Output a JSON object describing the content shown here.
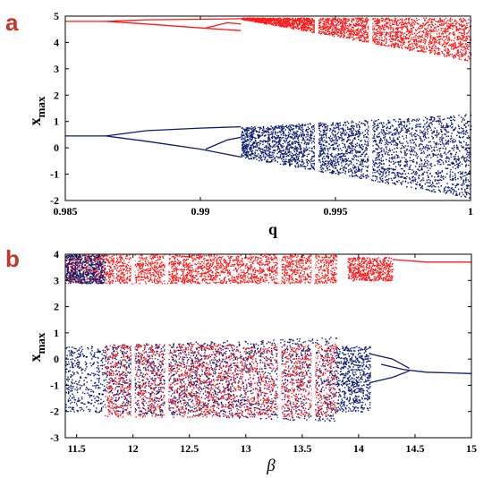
{
  "panels": [
    {
      "letter": "a"
    },
    {
      "letter": "b"
    }
  ],
  "colors": {
    "red": "#ff1a1a",
    "blue": "#0a1a70"
  },
  "chart_data": [
    {
      "type": "scatter",
      "panel": "a",
      "title": "",
      "xlabel": "q",
      "ylabel_main": "x",
      "ylabel_sub": "max",
      "xlim": [
        0.985,
        1.0
      ],
      "ylim": [
        -2,
        5
      ],
      "xticks": [
        0.985,
        0.99,
        0.995,
        1.0
      ],
      "xtick_labels": [
        "0.985",
        "0.99",
        "0.995",
        "1"
      ],
      "yticks": [
        -2,
        -1,
        0,
        1,
        2,
        3,
        4,
        5
      ],
      "yticks_labels": [
        "-2",
        "-1",
        "0",
        "1",
        "2",
        "3",
        "4",
        "5"
      ],
      "grid": false,
      "legend": "none",
      "series": [
        {
          "color": "red",
          "branch": "upper",
          "bifurcations_q": [
            0.9865,
            0.9902,
            0.9915
          ],
          "fixed_value": 4.8,
          "chaos_range_end": [
            3.3,
            4.9
          ]
        },
        {
          "color": "blue",
          "branch": "lower",
          "bifurcations_q": [
            0.9865,
            0.9902,
            0.9915
          ],
          "fixed_value": 0.45,
          "chaos_range_end": [
            -1.9,
            1.3
          ]
        }
      ]
    },
    {
      "type": "scatter",
      "panel": "b",
      "title": "",
      "xlabel": "β",
      "ylabel_main": "x",
      "ylabel_sub": "max",
      "xlim": [
        11.4,
        15.0
      ],
      "ylim": [
        -3,
        4
      ],
      "xticks": [
        11.5,
        12,
        12.5,
        13,
        13.5,
        14,
        14.5,
        15
      ],
      "xtick_labels": [
        "11.5",
        "12",
        "12.5",
        "13",
        "13.5",
        "14",
        "14.5",
        "15"
      ],
      "yticks": [
        -3,
        -2,
        -1,
        0,
        1,
        2,
        3,
        4
      ],
      "yticks_labels": [
        "-3",
        "-2",
        "-1",
        "0",
        "1",
        "2",
        "3",
        "4"
      ],
      "grid": false,
      "legend": "none",
      "series": [
        {
          "color": "red",
          "branch": "upper",
          "fixed_value": 3.7,
          "chaos_range_start": [
            2.9,
            4.0
          ]
        },
        {
          "color": "blue",
          "branch": "lower",
          "fixed_value": -0.5,
          "chaos_range_start": [
            -2.0,
            0.5
          ]
        }
      ]
    }
  ]
}
